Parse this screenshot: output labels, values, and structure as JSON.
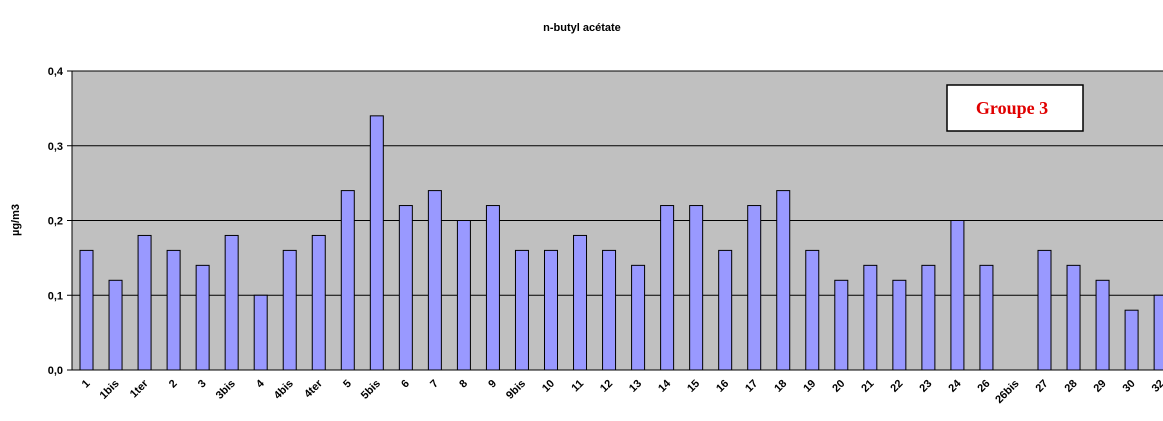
{
  "chart_data": {
    "type": "bar",
    "title": "n-butyl acétate",
    "y_label": "µg/m3",
    "annotation": "Groupe 3",
    "categories": [
      "1",
      "1bis",
      "1ter",
      "2",
      "3",
      "3bis",
      "4",
      "4bis",
      "4ter",
      "5",
      "5bis",
      "6",
      "7",
      "8",
      "9",
      "9bis",
      "10",
      "11",
      "12",
      "13",
      "14",
      "15",
      "16",
      "17",
      "18",
      "19",
      "20",
      "21",
      "22",
      "23",
      "24",
      "26",
      "26bis",
      "27",
      "28",
      "29",
      "30",
      "32"
    ],
    "values": [
      0.16,
      0.12,
      0.18,
      0.16,
      0.14,
      0.18,
      0.1,
      0.16,
      0.18,
      0.24,
      0.34,
      0.22,
      0.24,
      0.2,
      0.22,
      0.16,
      0.16,
      0.18,
      0.16,
      0.14,
      0.22,
      0.22,
      0.16,
      0.22,
      0.24,
      0.16,
      0.12,
      0.14,
      0.12,
      0.14,
      0.2,
      0.14,
      null,
      0.16,
      0.14,
      0.12,
      0.08,
      0.1
    ],
    "color": "#9999ff",
    "ylim": [
      0,
      0.4
    ],
    "yticks": [
      {
        "value": 0,
        "label": "0,0"
      },
      {
        "value": 0.1,
        "label": "0,1"
      },
      {
        "value": 0.2,
        "label": "0,2"
      },
      {
        "value": 0.3,
        "label": "0,3"
      },
      {
        "value": 0.4,
        "label": "0,4"
      }
    ],
    "grid": true
  }
}
